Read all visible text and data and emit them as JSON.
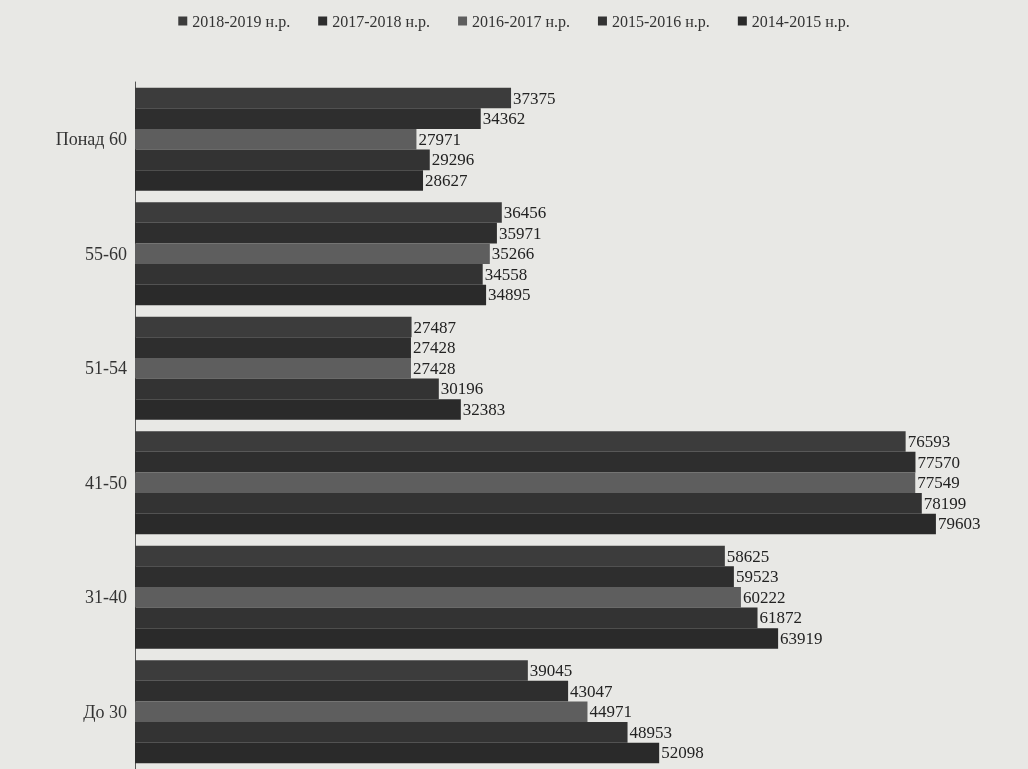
{
  "chart_data": {
    "type": "bar",
    "orientation": "horizontal",
    "data_labels": true,
    "legend": "top",
    "categories": [
      "Понад 60",
      "55-60",
      "51-54",
      "41-50",
      "31-40",
      "До 30"
    ],
    "series": [
      {
        "name": "2018-2019 н.р.",
        "color": "#3c3c3c",
        "values": [
          37375,
          36456,
          27487,
          76593,
          58625,
          39045
        ]
      },
      {
        "name": "2017-2018 н.р.",
        "color": "#2e2e2e",
        "values": [
          34362,
          35971,
          27428,
          77570,
          59523,
          43047
        ]
      },
      {
        "name": "2016-2017 н.р.",
        "color": "#5e5e5e",
        "values": [
          27971,
          35266,
          27428,
          77549,
          60222,
          44971
        ]
      },
      {
        "name": "2015-2016 н.р.",
        "color": "#333333",
        "values": [
          29296,
          34558,
          30196,
          78199,
          61872,
          48953
        ]
      },
      {
        "name": "2014-2015 н.р.",
        "color": "#2a2a2a",
        "values": [
          28627,
          34895,
          32383,
          79603,
          63919,
          52098
        ]
      }
    ]
  }
}
